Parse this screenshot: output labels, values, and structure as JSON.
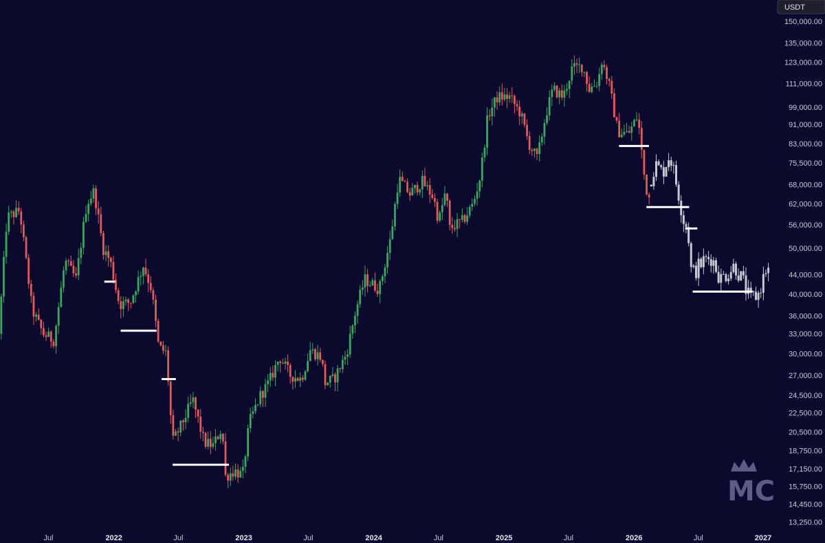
{
  "currency_label": "USDT",
  "colors": {
    "background": "#0b0a2e",
    "up": "#3aa65e",
    "down": "#e35a58",
    "projection": "#c8c8d2",
    "level": "#ffffff",
    "axis_text": "#c9c9d6",
    "logo": "#6f6a95"
  },
  "watermark": {
    "text": "MC",
    "icon": "crown-icon"
  },
  "chart_data": {
    "type": "candlestick",
    "title": "",
    "y_scale": "log",
    "ylim": [
      12800,
      162000
    ],
    "y_ticks": [
      150000,
      135000,
      123000,
      111000,
      99000,
      91000,
      83000,
      75500,
      68000,
      62000,
      56000,
      50000,
      44000,
      40000,
      36000,
      33000,
      30000,
      27000,
      24500,
      22500,
      20500,
      18750,
      17150,
      15750,
      14450,
      13250
    ],
    "y_tick_labels": [
      "150,000.00",
      "135,000.00",
      "123,000.00",
      "111,000.00",
      "99,000.00",
      "91,000.00",
      "83,000.00",
      "75,500.00",
      "68,000.00",
      "62,000.00",
      "56,000.00",
      "50,000.00",
      "44,000.00",
      "40,000.00",
      "36,000.00",
      "33,000.00",
      "30,000.00",
      "27,000.00",
      "24,500.00",
      "22,500.00",
      "20,500.00",
      "18,750.00",
      "17,150.00",
      "15,750.00",
      "14,450.00",
      "13,250.00"
    ],
    "x_ticks": [
      {
        "label": "Jul",
        "date": "2021-07-01",
        "bold": false
      },
      {
        "label": "2022",
        "date": "2022-01-01",
        "bold": true
      },
      {
        "label": "Jul",
        "date": "2022-07-01",
        "bold": false
      },
      {
        "label": "2023",
        "date": "2023-01-01",
        "bold": true
      },
      {
        "label": "Jul",
        "date": "2023-07-01",
        "bold": false
      },
      {
        "label": "2024",
        "date": "2024-01-01",
        "bold": true
      },
      {
        "label": "Jul",
        "date": "2024-07-01",
        "bold": false
      },
      {
        "label": "2025",
        "date": "2025-01-01",
        "bold": true
      },
      {
        "label": "Jul",
        "date": "2025-07-01",
        "bold": false
      },
      {
        "label": "2026",
        "date": "2026-01-01",
        "bold": true
      },
      {
        "label": "Jul",
        "date": "2026-07-01",
        "bold": false
      },
      {
        "label": "2027",
        "date": "2027-01-01",
        "bold": true
      }
    ],
    "xlim": [
      "2021-02-15",
      "2027-01-22"
    ],
    "price_anchors": [
      [
        "2021-02-15",
        33000
      ],
      [
        "2021-03-10",
        58000
      ],
      [
        "2021-04-15",
        60000
      ],
      [
        "2021-05-20",
        37000
      ],
      [
        "2021-06-20",
        33000
      ],
      [
        "2021-07-20",
        32000
      ],
      [
        "2021-08-20",
        47000
      ],
      [
        "2021-09-20",
        43000
      ],
      [
        "2021-10-20",
        62000
      ],
      [
        "2021-11-10",
        66000
      ],
      [
        "2021-12-05",
        50000
      ],
      [
        "2021-12-25",
        47000
      ],
      [
        "2022-01-20",
        38000
      ],
      [
        "2022-02-20",
        38500
      ],
      [
        "2022-03-28",
        46000
      ],
      [
        "2022-04-20",
        41000
      ],
      [
        "2022-05-10",
        31000
      ],
      [
        "2022-06-01",
        30000
      ],
      [
        "2022-06-18",
        19500
      ],
      [
        "2022-07-10",
        21000
      ],
      [
        "2022-08-14",
        24000
      ],
      [
        "2022-09-15",
        19500
      ],
      [
        "2022-10-10",
        19200
      ],
      [
        "2022-11-05",
        21000
      ],
      [
        "2022-11-12",
        16500
      ],
      [
        "2022-12-10",
        17000
      ],
      [
        "2023-01-01",
        16600
      ],
      [
        "2023-01-20",
        21500
      ],
      [
        "2023-02-20",
        24500
      ],
      [
        "2023-03-15",
        26000
      ],
      [
        "2023-04-15",
        29500
      ],
      [
        "2023-05-15",
        27000
      ],
      [
        "2023-06-15",
        26500
      ],
      [
        "2023-07-10",
        30500
      ],
      [
        "2023-08-10",
        29500
      ],
      [
        "2023-08-20",
        26000
      ],
      [
        "2023-09-15",
        26500
      ],
      [
        "2023-10-20",
        30000
      ],
      [
        "2023-11-15",
        37000
      ],
      [
        "2023-12-10",
        43000
      ],
      [
        "2024-01-20",
        41000
      ],
      [
        "2024-02-20",
        52000
      ],
      [
        "2024-03-14",
        70000
      ],
      [
        "2024-04-15",
        65000
      ],
      [
        "2024-05-20",
        69000
      ],
      [
        "2024-06-20",
        64000
      ],
      [
        "2024-07-05",
        57000
      ],
      [
        "2024-07-25",
        66000
      ],
      [
        "2024-08-05",
        55000
      ],
      [
        "2024-09-10",
        57000
      ],
      [
        "2024-10-10",
        62000
      ],
      [
        "2024-10-30",
        71000
      ],
      [
        "2024-11-20",
        95000
      ],
      [
        "2024-12-17",
        104000
      ],
      [
        "2025-01-20",
        104000
      ],
      [
        "2025-02-20",
        96000
      ],
      [
        "2025-03-15",
        83000
      ],
      [
        "2025-04-08",
        77000
      ],
      [
        "2025-05-01",
        95000
      ],
      [
        "2025-05-22",
        108000
      ],
      [
        "2025-06-20",
        104000
      ],
      [
        "2025-07-14",
        119000
      ],
      [
        "2025-08-13",
        121000
      ],
      [
        "2025-09-01",
        108000
      ],
      [
        "2025-09-25",
        112000
      ],
      [
        "2025-10-06",
        124000
      ],
      [
        "2025-10-25",
        112000
      ],
      [
        "2025-11-20",
        88000
      ],
      [
        "2025-12-20",
        87000
      ],
      [
        "2026-01-15",
        95000
      ],
      [
        "2026-02-05",
        68000
      ],
      [
        "2026-02-15",
        64000
      ]
    ],
    "projection_anchors": [
      [
        "2026-02-15",
        68000
      ],
      [
        "2026-03-05",
        75000
      ],
      [
        "2026-03-25",
        72000
      ],
      [
        "2026-04-15",
        79000
      ],
      [
        "2026-05-10",
        65000
      ],
      [
        "2026-05-25",
        57000
      ],
      [
        "2026-06-05",
        55000
      ],
      [
        "2026-06-15",
        44000
      ],
      [
        "2026-07-20",
        47000
      ],
      [
        "2026-08-10",
        48000
      ],
      [
        "2026-09-05",
        43000
      ],
      [
        "2026-09-25",
        44500
      ],
      [
        "2026-10-15",
        46000
      ],
      [
        "2026-11-10",
        42000
      ],
      [
        "2026-11-25",
        39000
      ],
      [
        "2026-12-20",
        40000
      ],
      [
        "2027-01-10",
        45000
      ]
    ],
    "levels": [
      {
        "price": 42500,
        "start": "2021-12-05",
        "end": "2022-01-05"
      },
      {
        "price": 33500,
        "start": "2022-01-20",
        "end": "2022-05-01"
      },
      {
        "price": 26500,
        "start": "2022-05-15",
        "end": "2022-06-24"
      },
      {
        "price": 17500,
        "start": "2022-06-15",
        "end": "2022-11-20"
      },
      {
        "price": 82000,
        "start": "2025-11-20",
        "end": "2026-02-12"
      },
      {
        "price": 61000,
        "start": "2026-02-05",
        "end": "2026-06-05"
      },
      {
        "price": 55000,
        "start": "2026-05-25",
        "end": "2026-06-28"
      },
      {
        "price": 40500,
        "start": "2026-06-15",
        "end": "2026-11-30"
      }
    ]
  }
}
